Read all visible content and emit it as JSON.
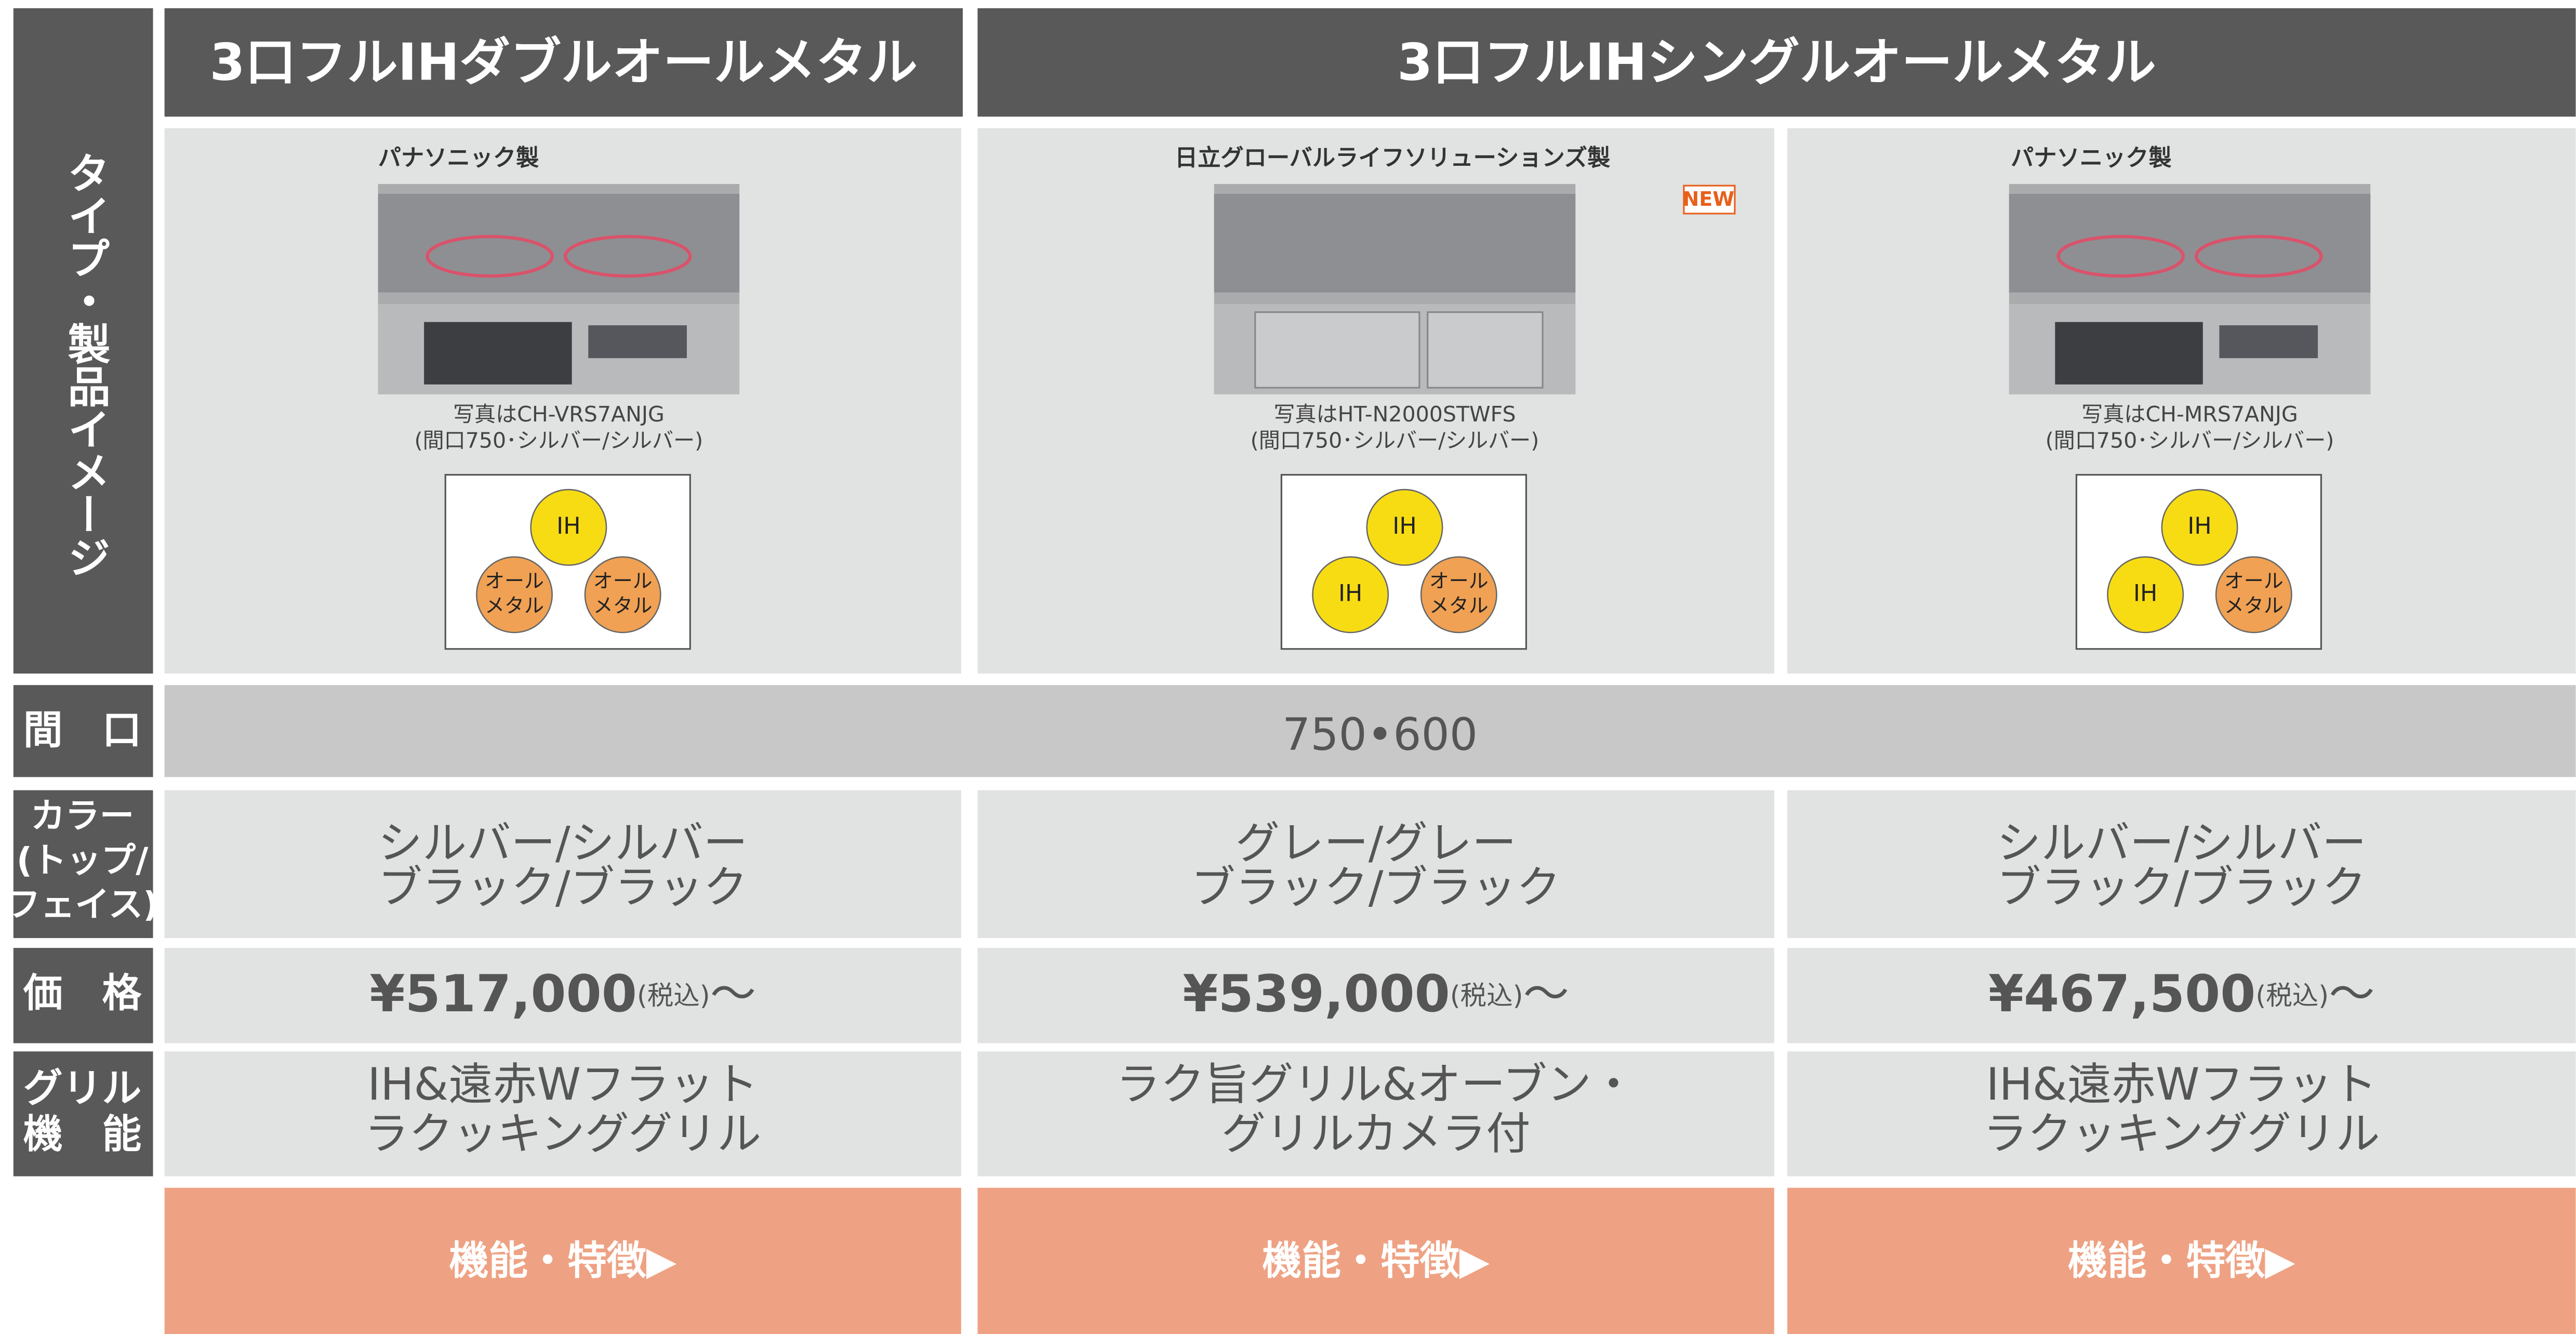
{
  "row_labels": {
    "type": "タイプ・製品イメージ",
    "width": "間　口",
    "color": [
      "カラー",
      "(トップ/",
      "フェイス)"
    ],
    "price": "価　格",
    "grill": [
      "グリル",
      "機　能"
    ]
  },
  "groups": [
    {
      "title": "3口フルIHダブルオールメタル"
    },
    {
      "title": "3口フルIHシングルオールメタル"
    }
  ],
  "width_value": "750•600",
  "products": [
    {
      "maker": "パナソニック製",
      "caption": [
        "写真はCH-VRS7ANJG",
        "(間口750･シルバー/シルバー)"
      ],
      "burners": [
        {
          "lines": [
            "IH"
          ],
          "color": "#f7dc14"
        },
        {
          "lines": [
            "オール",
            "メタル"
          ],
          "color": "#f0a153"
        },
        {
          "lines": [
            "オール",
            "メタル"
          ],
          "color": "#f0a153"
        }
      ],
      "color": [
        "シルバー/シルバー",
        "ブラック/ブラック"
      ],
      "price": "¥517,000",
      "tax": "(税込)",
      "tilde": "〜",
      "grill": [
        "IH&遠赤Wフラット",
        "ラクッキンググリル"
      ],
      "button": "機能・特徴▶"
    },
    {
      "maker": "日立グローバルライフソリューションズ製",
      "badge": "NEW",
      "caption": [
        "写真はHT-N2000STWFS",
        "(間口750･シルバー/シルバー)"
      ],
      "burners": [
        {
          "lines": [
            "IH"
          ],
          "color": "#f7dc14"
        },
        {
          "lines": [
            "IH"
          ],
          "color": "#f7dc14"
        },
        {
          "lines": [
            "オール",
            "メタル"
          ],
          "color": "#f0a153"
        }
      ],
      "color": [
        "グレー/グレー",
        "ブラック/ブラック"
      ],
      "price": "¥539,000",
      "tax": "(税込)",
      "tilde": "〜",
      "grill": [
        "ラク旨グリル&オーブン・",
        "グリルカメラ付"
      ],
      "button": "機能・特徴▶"
    },
    {
      "maker": "パナソニック製",
      "caption": [
        "写真はCH-MRS7ANJG",
        "(間口750･シルバー/シルバー)"
      ],
      "burners": [
        {
          "lines": [
            "IH"
          ],
          "color": "#f7dc14"
        },
        {
          "lines": [
            "IH"
          ],
          "color": "#f7dc14"
        },
        {
          "lines": [
            "オール",
            "メタル"
          ],
          "color": "#f0a153"
        }
      ],
      "color": [
        "シルバー/シルバー",
        "ブラック/ブラック"
      ],
      "price": "¥467,500",
      "tax": "(税込)",
      "tilde": "〜",
      "grill": [
        "IH&遠赤Wフラット",
        "ラクッキンググリル"
      ],
      "button": "機能・特徴▶"
    }
  ]
}
